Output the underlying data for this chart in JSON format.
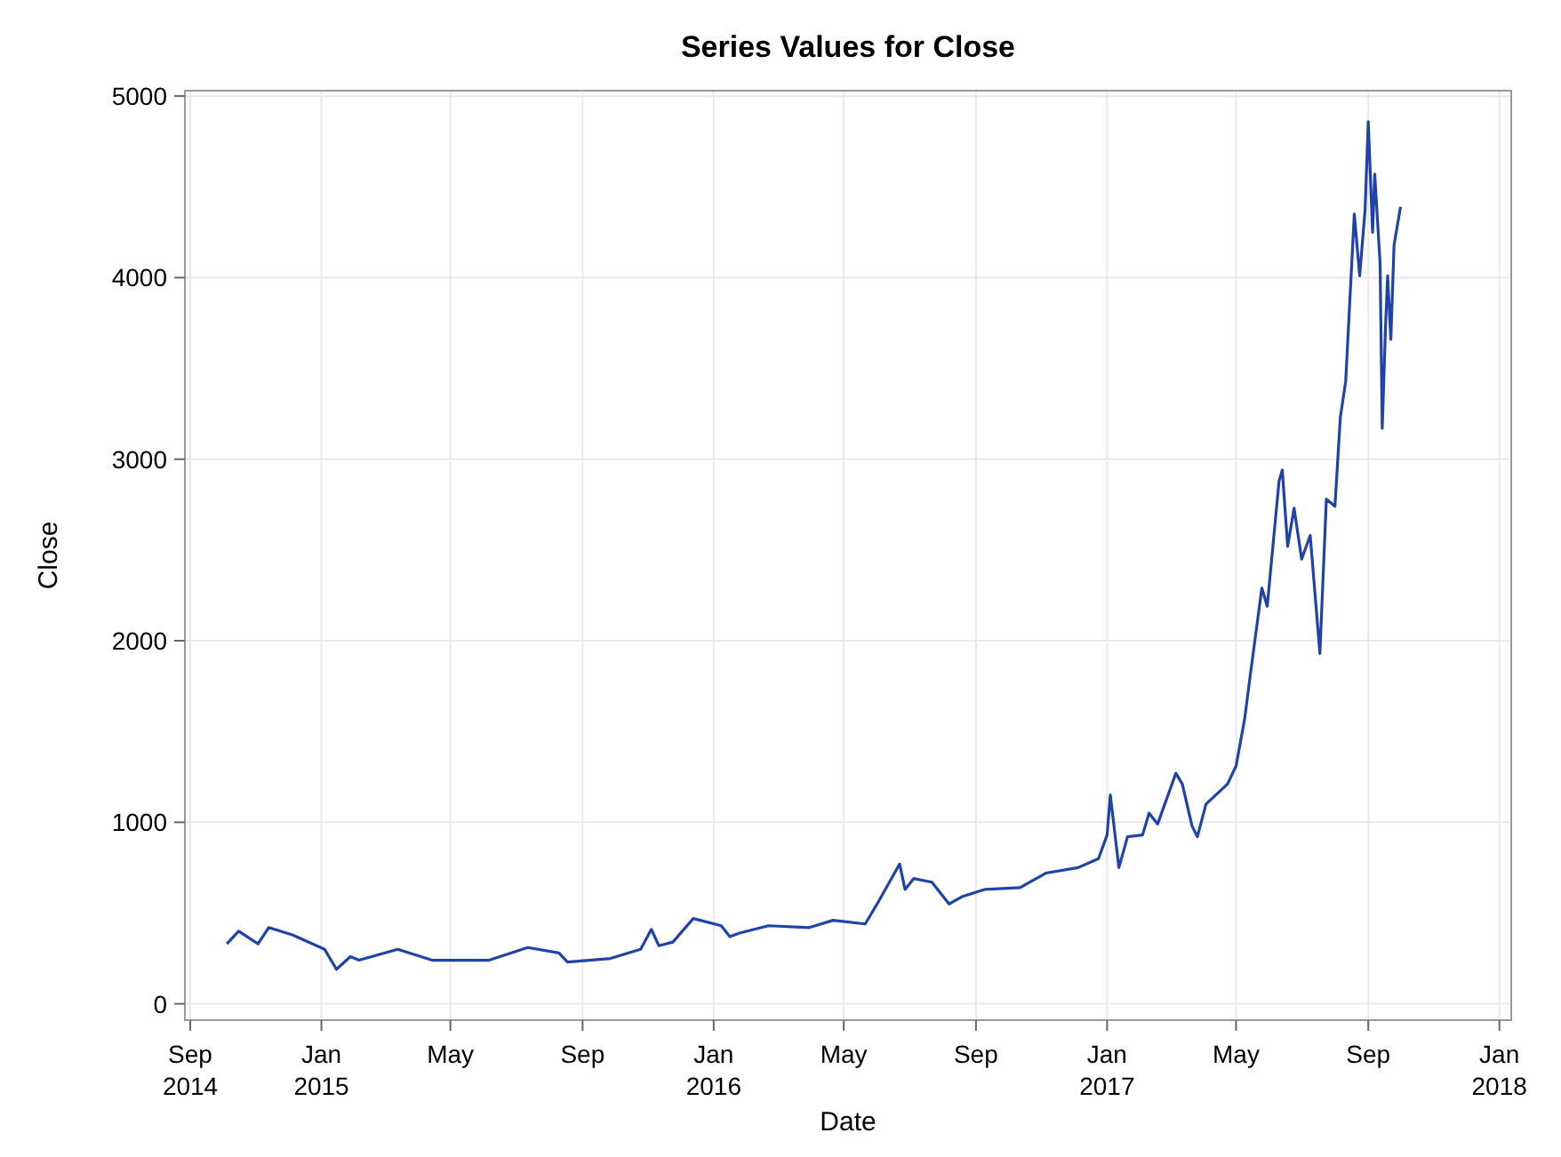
{
  "chart_data": {
    "type": "line",
    "title": "Series Values for Close",
    "xlabel": "Date",
    "ylabel": "Close",
    "x": [
      "2014-10-05",
      "2014-10-16",
      "2014-11-03",
      "2014-11-13",
      "2014-12-05",
      "2015-01-04",
      "2015-01-15",
      "2015-01-28",
      "2015-02-05",
      "2015-03-13",
      "2015-04-14",
      "2015-06-06",
      "2015-07-12",
      "2015-08-10",
      "2015-08-18",
      "2015-09-27",
      "2015-10-25",
      "2015-11-04",
      "2015-11-11",
      "2015-11-24",
      "2015-12-13",
      "2016-01-08",
      "2016-01-16",
      "2016-01-25",
      "2016-02-21",
      "2016-03-30",
      "2016-04-21",
      "2016-05-21",
      "2016-06-02",
      "2016-06-22",
      "2016-06-27",
      "2016-07-05",
      "2016-07-22",
      "2016-08-07",
      "2016-08-19",
      "2016-09-09",
      "2016-10-12",
      "2016-11-05",
      "2016-12-05",
      "2016-12-24",
      "2017-01-01",
      "2017-01-04",
      "2017-01-12",
      "2017-01-20",
      "2017-02-03",
      "2017-02-09",
      "2017-02-17",
      "2017-03-06",
      "2017-03-12",
      "2017-03-21",
      "2017-03-26",
      "2017-04-03",
      "2017-04-23",
      "2017-05-01",
      "2017-05-09",
      "2017-05-14",
      "2017-05-25",
      "2017-05-30",
      "2017-06-10",
      "2017-06-13",
      "2017-06-18",
      "2017-06-24",
      "2017-07-01",
      "2017-07-09",
      "2017-07-18",
      "2017-07-24",
      "2017-08-01",
      "2017-08-06",
      "2017-08-11",
      "2017-08-19",
      "2017-08-24",
      "2017-08-29",
      "2017-09-01",
      "2017-09-05",
      "2017-09-07",
      "2017-09-12",
      "2017-09-14",
      "2017-09-17",
      "2017-09-19",
      "2017-09-22",
      "2017-09-25",
      "2017-10-01"
    ],
    "series": [
      {
        "color": "#1f43a8",
        "values": [
          330,
          400,
          330,
          420,
          380,
          300,
          190,
          260,
          240,
          300,
          240,
          240,
          310,
          280,
          230,
          250,
          300,
          410,
          320,
          340,
          470,
          430,
          370,
          390,
          430,
          420,
          460,
          440,
          560,
          770,
          630,
          690,
          670,
          550,
          590,
          630,
          640,
          720,
          750,
          800,
          930,
          1150,
          750,
          920,
          930,
          1050,
          990,
          1270,
          1210,
          980,
          920,
          1100,
          1210,
          1310,
          1570,
          1800,
          2290,
          2190,
          2880,
          2940,
          2520,
          2730,
          2450,
          2580,
          1930,
          2780,
          2740,
          3230,
          3430,
          4350,
          4010,
          4370,
          4860,
          4250,
          4570,
          4080,
          3170,
          3720,
          4010,
          3660,
          4180,
          4390
        ]
      }
    ],
    "xlim": [
      "2014-08-27",
      "2018-01-12"
    ],
    "xticks": [
      {
        "value": "2014-09-01",
        "label": "Sep\n2014"
      },
      {
        "value": "2015-01-01",
        "label": "Jan\n2015"
      },
      {
        "value": "2015-05-01",
        "label": "May"
      },
      {
        "value": "2015-09-01",
        "label": "Sep"
      },
      {
        "value": "2016-01-01",
        "label": "Jan\n2016"
      },
      {
        "value": "2016-05-01",
        "label": "May"
      },
      {
        "value": "2016-09-01",
        "label": "Sep"
      },
      {
        "value": "2017-01-01",
        "label": "Jan\n2017"
      },
      {
        "value": "2017-05-01",
        "label": "May"
      },
      {
        "value": "2017-09-01",
        "label": "Sep"
      },
      {
        "value": "2018-01-01",
        "label": "Jan\n2018"
      }
    ],
    "ylim": [
      -90,
      5030
    ],
    "yticks": [
      0,
      1000,
      2000,
      3000,
      4000,
      5000
    ],
    "grid": true
  }
}
